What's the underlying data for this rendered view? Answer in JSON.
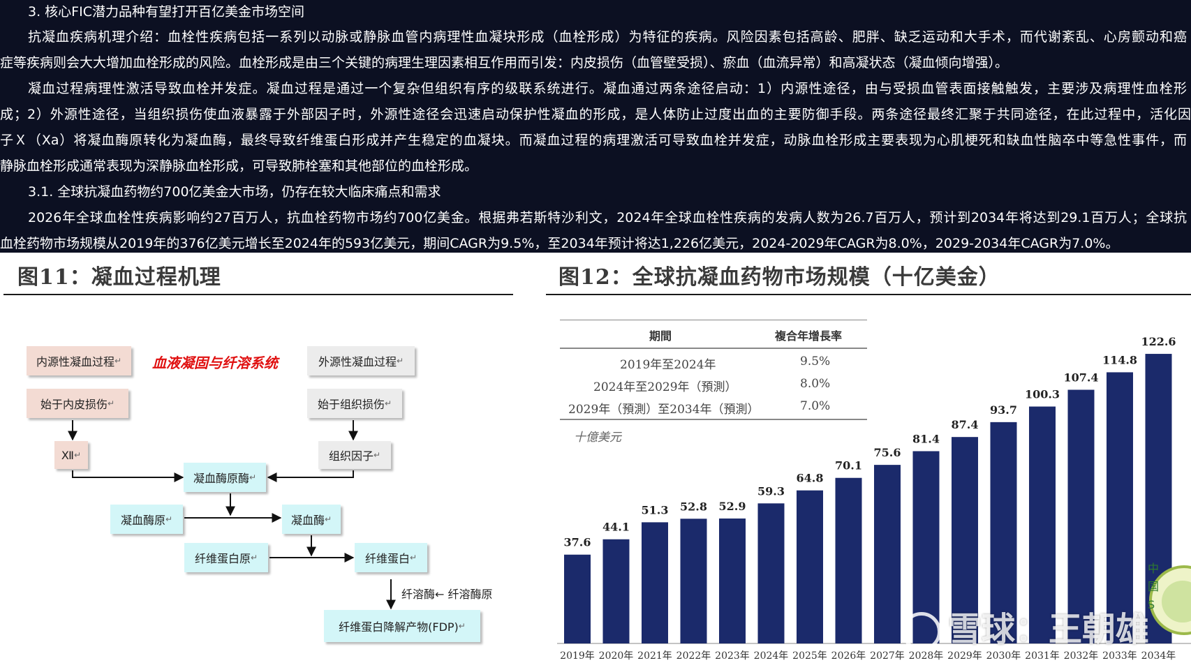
{
  "article": {
    "section_heading": "3.   核心FIC潜力品种有望打开百亿美金市场空间",
    "para1_line1": "抗凝血疾病机理介绍：血栓性疾病包括一系列以动脉或静脉血管内病理性血凝块形成（血栓形成）为特征的疾病。风险因素包括高龄、肥胖、缺乏运动和大手术，而代谢紊乱、心房颤动和癌",
    "para1_line2": "症等疾病则会大大增加血栓形成的风险。血栓形成是由三个关键的病理生理因素相互作用而引发：内皮损伤（血管壁受损）、瘀血（血流异常）和高凝状态（凝血倾向增强）。",
    "para2_line1": "凝血过程病理性激活导致血栓并发症。凝血过程是通过一个复杂但组织有序的级联系统进行。凝血通过两条途径启动：1）内源性途径，由与受损血管表面接触触发，主要涉及病理性血栓形",
    "para2_line2": "成；2）外源性途径，当组织损伤使血液暴露于外部因子时，外源性途径会迅速启动保护性凝血的形成，是人体防止过度出血的主要防御手段。两条途径最终汇聚于共同途径，在此过程中，活化因",
    "para2_line3": "子Ｘ（Xa）将凝血酶原转化为凝血酶，最终导致纤维蛋白形成并产生稳定的血凝块。而凝血过程的病理激活可导致血栓并发症，动脉血栓形成主要表现为心肌梗死和缺血性脑卒中等急性事件，而",
    "para2_line4": "静脉血栓形成通常表现为深静脉血栓形成，可导致肺栓塞和其他部位的血栓形成。",
    "subsection_heading": "3.1.  全球抗凝血药物约700亿美金大市场，仍存在较大临床痛点和需求",
    "para3_line1": "2026年全球血栓性疾病影响约27百万人，抗血栓药物市场约700亿美金。根据弗若斯特沙利文，2024年全球血栓性疾病的发病人数为26.7百万人，预计到2034年将达到29.1百万人；全球抗",
    "para3_line2": "血栓药物市场规模从2019年的376亿美元增长至2024年的593亿美元，期间CAGR为9.5%，至2034年预计将达1,226亿美元，2024-2029年CAGR为8.0%，2029-2034年CAGR为7.0%。"
  },
  "figure11": {
    "title": "图11：凝血过程机理",
    "center_title": "血液凝固与纤溶系统",
    "boxes": {
      "intrinsic": "内源性凝血过程",
      "extrinsic": "外源性凝血过程",
      "endothelial": "始于内皮损伤",
      "tissue_damage": "始于组织损伤",
      "factor12": "Ⅻ",
      "tissue_factor": "组织因子",
      "prothrombinase": "凝血酶原酶",
      "prothrombin": "凝血酶原",
      "thrombin": "凝血酶",
      "fibrinogen": "纤维蛋白原",
      "fibrin": "纤维蛋白",
      "plasmin_label": "纤溶酶←  纤溶酶原",
      "fdp": "纤维蛋白降解产物(FDP)"
    },
    "box_suffix": "↵"
  },
  "figure12": {
    "title": "图12：全球抗凝血药物市场规模（十亿美金）",
    "table": {
      "col_period": "期間",
      "col_cagr": "複合年增長率",
      "rows": [
        {
          "period": "2019年至2024年",
          "cagr": "9.5%"
        },
        {
          "period": "2024年至2029年（預測）",
          "cagr": "8.0%"
        },
        {
          "period": "2029年（預測）至2034年（預測）",
          "cagr": "7.0%"
        }
      ],
      "unit_note": "十億美元"
    },
    "watermark": "雪球：王朝雄"
  },
  "chart_data": {
    "type": "bar",
    "categories": [
      "2019年",
      "2020年",
      "2021年",
      "2022年",
      "2023年",
      "2024年",
      "2025年",
      "2026年",
      "2027年",
      "2028年",
      "2029年",
      "2030年",
      "2031年",
      "2032年",
      "2033年",
      "2034年"
    ],
    "values": [
      37.6,
      44.1,
      51.3,
      52.8,
      52.9,
      59.3,
      64.8,
      70.1,
      75.6,
      81.4,
      87.4,
      93.7,
      100.3,
      107.4,
      114.8,
      122.6
    ],
    "ylim": [
      0,
      130
    ],
    "bar_color": "#1b2a6b",
    "grid": false,
    "legend": "none"
  }
}
